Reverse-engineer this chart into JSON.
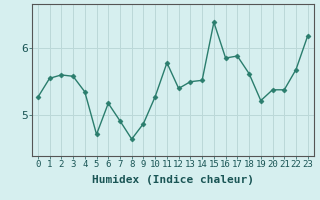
{
  "x": [
    0,
    1,
    2,
    3,
    4,
    5,
    6,
    7,
    8,
    9,
    10,
    11,
    12,
    13,
    14,
    15,
    16,
    17,
    18,
    19,
    20,
    21,
    22,
    23
  ],
  "y": [
    5.27,
    5.55,
    5.6,
    5.58,
    5.35,
    4.72,
    5.18,
    4.92,
    4.65,
    4.88,
    5.28,
    5.78,
    5.4,
    5.5,
    5.52,
    6.38,
    5.85,
    5.88,
    5.62,
    5.22,
    5.38,
    5.38,
    5.68,
    6.18
  ],
  "xlabel": "Humidex (Indice chaleur)",
  "yticks": [
    5,
    6
  ],
  "ylim": [
    4.4,
    6.65
  ],
  "xlim": [
    -0.5,
    23.5
  ],
  "line_color": "#2a7d6d",
  "marker": "D",
  "marker_size": 2.5,
  "bg_color": "#d6efef",
  "grid_color": "#bbd8d8",
  "xlabel_fontsize": 8,
  "tick_fontsize": 6.5,
  "line_width": 1.0
}
